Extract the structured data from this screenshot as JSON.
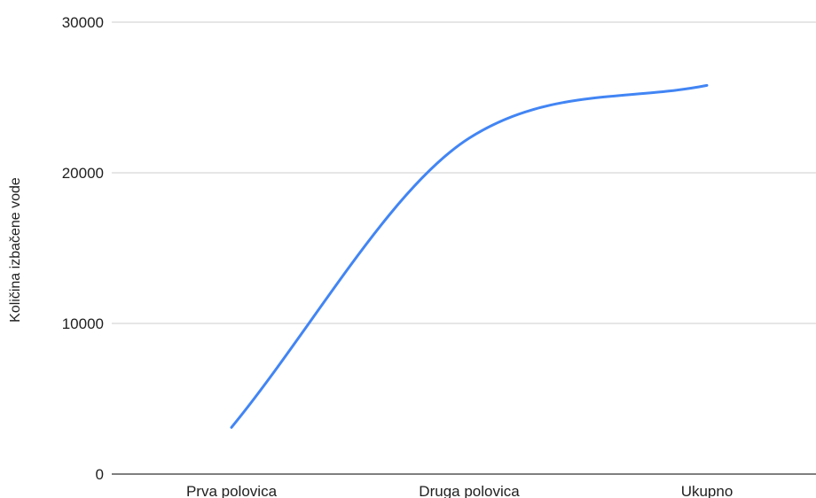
{
  "chart_data": {
    "type": "line",
    "title": "",
    "xlabel": "",
    "ylabel": "Količina izbačene vode",
    "categories": [
      "Prva polovica",
      "Druga polovica",
      "Ukupno"
    ],
    "y_ticks": [
      "0",
      "10000",
      "20000",
      "30000"
    ],
    "ylim": [
      0,
      30000
    ],
    "grid": true,
    "smooth": true,
    "series": [
      {
        "values": [
          3100,
          22300,
          25800
        ],
        "color": "#4285f4"
      }
    ]
  }
}
